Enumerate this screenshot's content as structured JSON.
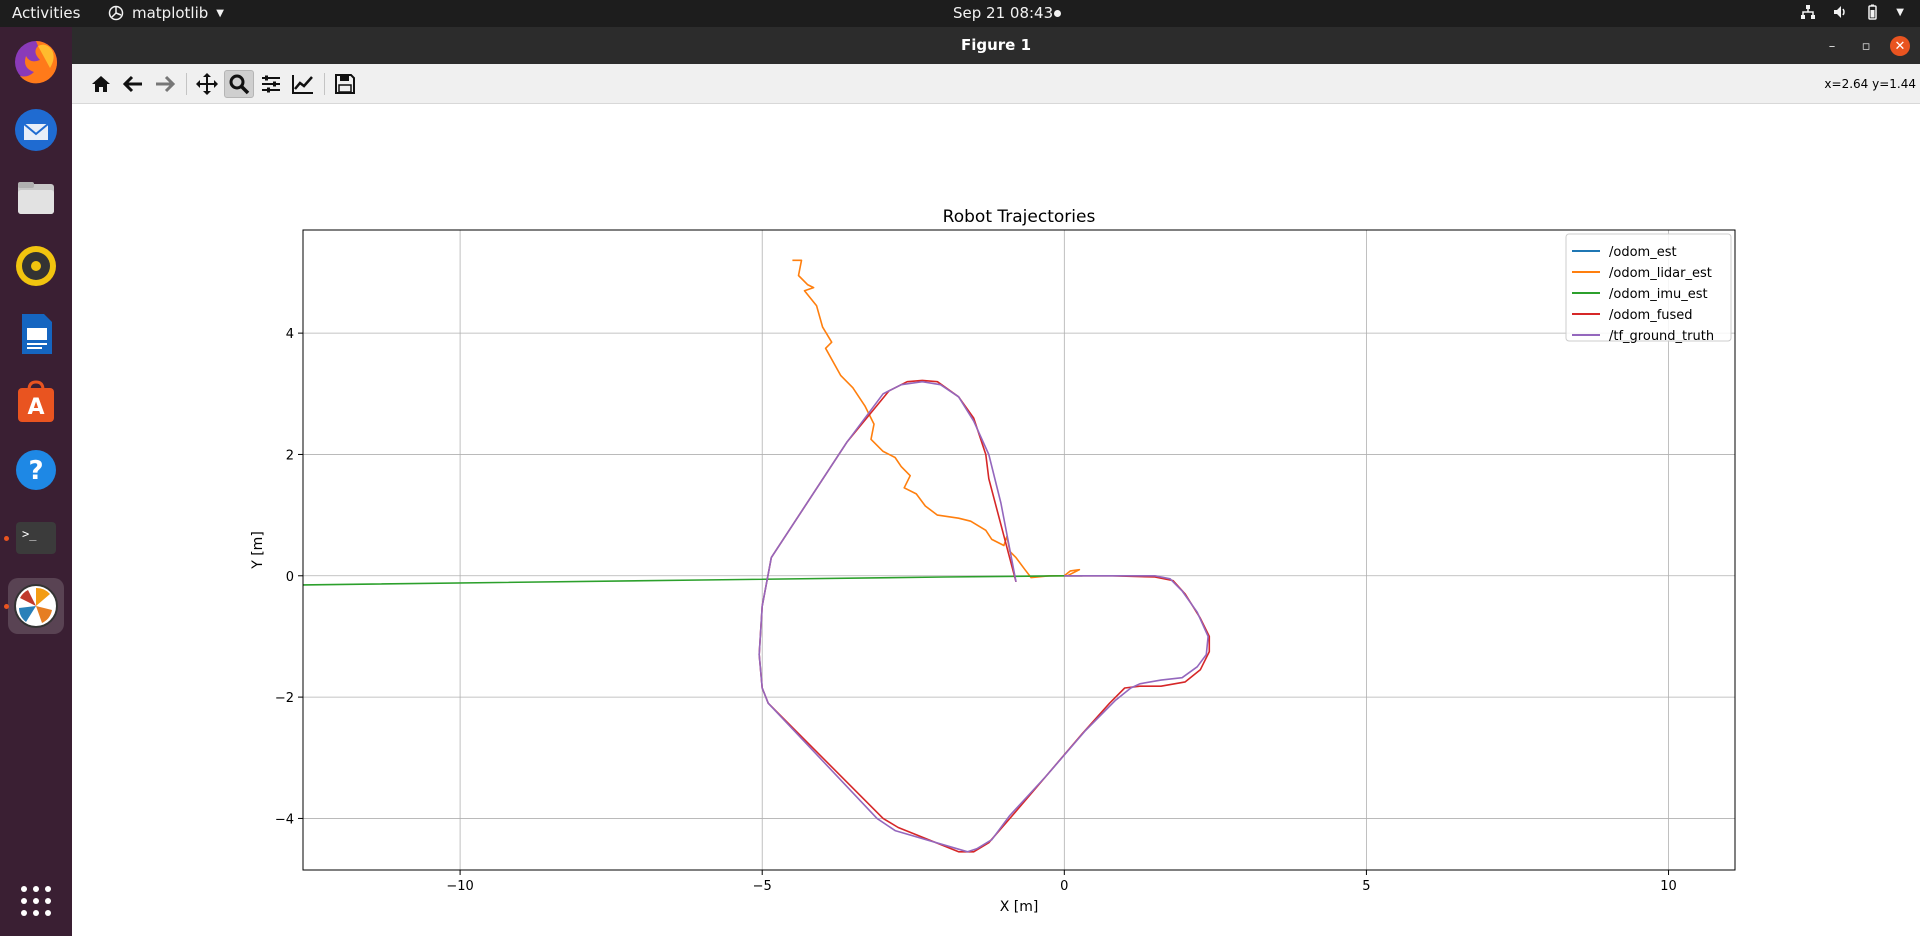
{
  "topbar": {
    "activities": "Activities",
    "app_name": "matplotlib",
    "clock": "Sep 21  08:43"
  },
  "dock": {
    "items": [
      {
        "name": "firefox-icon"
      },
      {
        "name": "thunderbird-icon"
      },
      {
        "name": "files-icon"
      },
      {
        "name": "rhythmbox-icon"
      },
      {
        "name": "writer-icon"
      },
      {
        "name": "software-icon"
      },
      {
        "name": "help-icon"
      },
      {
        "name": "terminal-icon"
      },
      {
        "name": "matplotlib-icon"
      },
      {
        "name": "app-grid-icon"
      }
    ]
  },
  "window": {
    "title": "Figure 1"
  },
  "toolbar": {
    "buttons": [
      "home-icon",
      "back-icon",
      "forward-icon",
      "pan-icon",
      "zoom-icon",
      "configure-subplots-icon",
      "edit-axes-icon",
      "save-icon"
    ],
    "active": "zoom-icon",
    "coords": "x=2.64 y=1.44"
  },
  "colors": {
    "odom_est": "#1f77b4",
    "odom_lidar_est": "#ff7f0e",
    "odom_imu_est": "#2ca02c",
    "odom_fused": "#d62728",
    "tf_ground_truth": "#9467bd"
  },
  "chart_data": {
    "type": "line",
    "title": "Robot Trajectories",
    "xlabel": "X [m]",
    "ylabel": "Y [m]",
    "xlim": [
      -12.6,
      11.1
    ],
    "ylim": [
      -4.85,
      5.7
    ],
    "xticks": [
      -10,
      -5,
      0,
      5,
      10
    ],
    "yticks": [
      -4,
      -2,
      0,
      2,
      4
    ],
    "grid": true,
    "legend": "top-right",
    "series": [
      {
        "name": "/odom_est",
        "x": [
          0,
          0
        ],
        "y": [
          0,
          0
        ]
      },
      {
        "name": "/odom_lidar_est",
        "x": [
          -4.5,
          -4.35,
          -4.4,
          -4.25,
          -4.15,
          -4.3,
          -4.1,
          -4.0,
          -3.85,
          -3.95,
          -3.7,
          -3.5,
          -3.3,
          -3.15,
          -3.2,
          -3.0,
          -2.8,
          -2.7,
          -2.55,
          -2.65,
          -2.45,
          -2.3,
          -2.1,
          -1.75,
          -1.55,
          -1.3,
          -1.2,
          -1.0,
          -0.95,
          -0.9,
          -0.8,
          -0.65,
          -0.55,
          -0.25,
          0.0,
          0.1,
          0.25,
          0.05,
          0.15
        ],
        "y": [
          5.2,
          5.2,
          4.95,
          4.8,
          4.75,
          4.7,
          4.45,
          4.1,
          3.85,
          3.75,
          3.3,
          3.1,
          2.8,
          2.5,
          2.25,
          2.05,
          1.95,
          1.8,
          1.65,
          1.45,
          1.35,
          1.15,
          1.0,
          0.95,
          0.9,
          0.75,
          0.6,
          0.5,
          0.65,
          0.4,
          0.3,
          0.1,
          -0.03,
          0.0,
          0.0,
          0.08,
          0.1,
          0.0,
          0.05
        ]
      },
      {
        "name": "/odom_imu_est",
        "x": [
          -12.6,
          -6.0,
          -2.0,
          0.0,
          0.3
        ],
        "y": [
          -0.15,
          -0.07,
          -0.02,
          0.0,
          0.0
        ]
      },
      {
        "name": "/odom_fused",
        "x": [
          0.0,
          0.8,
          1.5,
          1.8,
          2.0,
          2.25,
          2.4,
          2.4,
          2.25,
          2.0,
          1.6,
          1.25,
          1.0,
          0.75,
          0.3,
          -0.3,
          -0.9,
          -1.25,
          -1.5,
          -1.75,
          -2.75,
          -3.0,
          -4.9,
          -5.0,
          -5.05,
          -5.0,
          -4.85,
          -3.6,
          -2.9,
          -2.6,
          -2.35,
          -2.1,
          -1.75,
          -1.5,
          -1.3,
          -1.25,
          -0.8
        ],
        "y": [
          0.0,
          0.0,
          -0.02,
          -0.08,
          -0.3,
          -0.7,
          -1.0,
          -1.25,
          -1.55,
          -1.75,
          -1.82,
          -1.82,
          -1.85,
          -2.1,
          -2.6,
          -3.3,
          -4.0,
          -4.4,
          -4.55,
          -4.55,
          -4.15,
          -4.0,
          -2.1,
          -1.85,
          -1.3,
          -0.5,
          0.3,
          2.2,
          3.05,
          3.2,
          3.22,
          3.2,
          2.95,
          2.6,
          2.0,
          1.6,
          -0.1
        ]
      },
      {
        "name": "/tf_ground_truth",
        "x": [
          0.0,
          0.8,
          1.5,
          1.75,
          1.95,
          2.2,
          2.38,
          2.35,
          2.2,
          1.95,
          1.6,
          1.25,
          1.1,
          0.85,
          0.35,
          -0.3,
          -0.9,
          -1.2,
          -1.45,
          -1.6,
          -2.8,
          -3.1,
          -4.9,
          -5.0,
          -5.05,
          -5.0,
          -4.85,
          -3.6,
          -3.0,
          -2.7,
          -2.35,
          -2.05,
          -1.75,
          -1.5,
          -1.25,
          -1.05,
          -0.8
        ],
        "y": [
          0.0,
          0.0,
          0.0,
          -0.05,
          -0.25,
          -0.6,
          -1.0,
          -1.3,
          -1.5,
          -1.68,
          -1.72,
          -1.78,
          -1.85,
          -2.05,
          -2.55,
          -3.3,
          -3.95,
          -4.35,
          -4.5,
          -4.55,
          -4.2,
          -4.0,
          -2.1,
          -1.85,
          -1.3,
          -0.5,
          0.3,
          2.2,
          3.0,
          3.15,
          3.2,
          3.15,
          2.95,
          2.55,
          2.0,
          1.2,
          -0.1
        ]
      }
    ]
  }
}
